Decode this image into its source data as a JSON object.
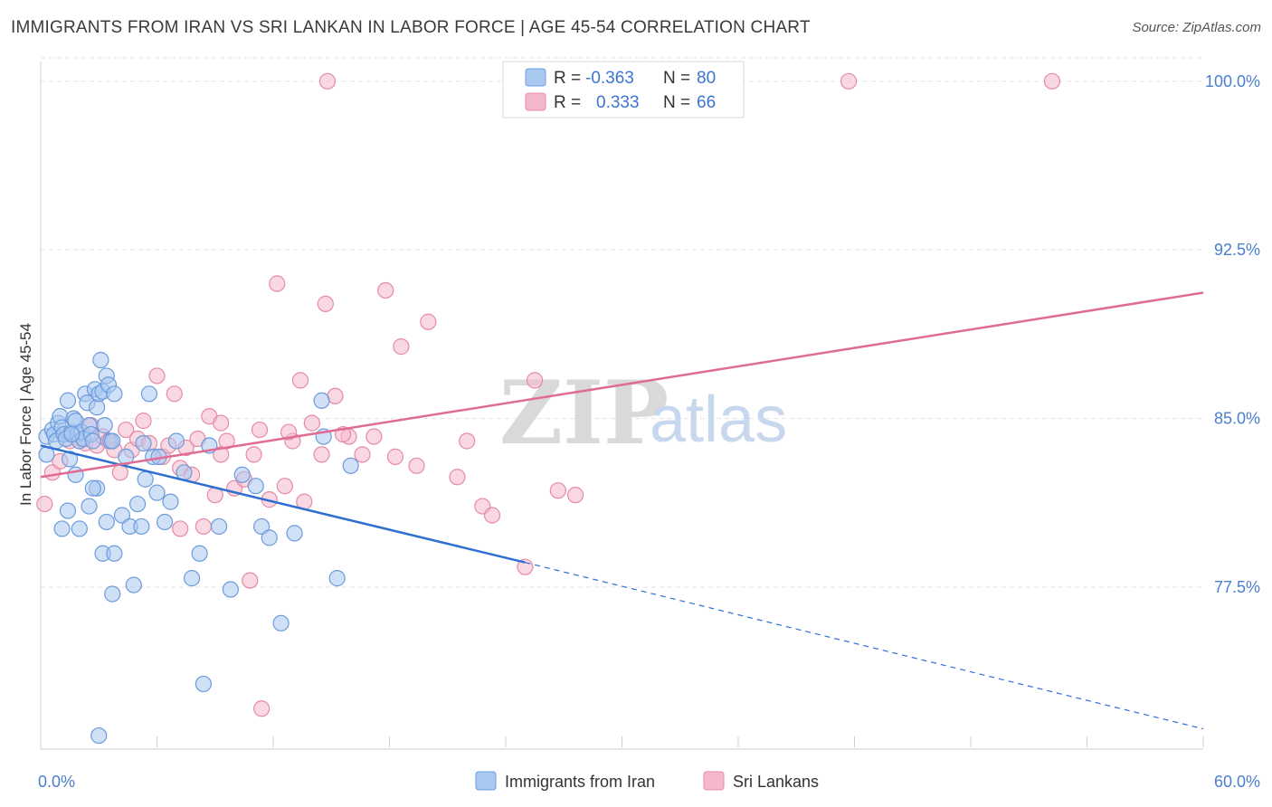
{
  "title": "IMMIGRANTS FROM IRAN VS SRI LANKAN IN LABOR FORCE | AGE 45-54 CORRELATION CHART",
  "source": "Source: ZipAtlas.com",
  "watermark": {
    "zip": "ZIP",
    "atlas": "atlas"
  },
  "colors": {
    "iran_fill": "#a9c8f0",
    "iran_stroke": "#6b9bdc",
    "iran_line": "#2f6fd0",
    "lanka_fill": "#f5b8cb",
    "lanka_stroke": "#e58aa8",
    "lanka_line": "#e06b93",
    "grid": "#e3e3e3",
    "tick_label": "#4a7fd0"
  },
  "legend": {
    "rows": [
      {
        "r_label": "R =",
        "r_value": "-0.363",
        "n_label": "N =",
        "n_value": "80"
      },
      {
        "r_label": "R =",
        "r_value": "0.333",
        "n_label": "N =",
        "n_value": "66"
      }
    ]
  },
  "bottom_legend": [
    "Immigrants from Iran",
    "Sri Lankans"
  ],
  "chart_data": {
    "type": "scatter",
    "ylabel": "In Labor Force | Age 45-54",
    "xlim": [
      0,
      60
    ],
    "ylim": [
      70.3,
      101.2
    ],
    "x_tick_labels": [
      {
        "value": 0,
        "label": "0.0%"
      },
      {
        "value": 60,
        "label": "60.0%"
      }
    ],
    "y_tick_labels": [
      {
        "value": 100.0,
        "label": "100.0%"
      },
      {
        "value": 92.5,
        "label": "92.5%"
      },
      {
        "value": 85.0,
        "label": "85.0%"
      },
      {
        "value": 77.5,
        "label": "77.5%"
      }
    ],
    "series": [
      {
        "name": "Immigrants from Iran",
        "trend": {
          "x0": 0,
          "y0": 83.8,
          "x1": 25,
          "y1": 78.6,
          "dashed_to_x": 60,
          "dashed_to_y": 71.2
        },
        "points": [
          [
            0.3,
            84.2
          ],
          [
            0.3,
            83.4
          ],
          [
            0.6,
            84.5
          ],
          [
            0.7,
            84.3
          ],
          [
            0.8,
            84.0
          ],
          [
            0.9,
            84.8
          ],
          [
            1.0,
            85.1
          ],
          [
            1.1,
            84.6
          ],
          [
            1.2,
            84.3
          ],
          [
            1.3,
            84.1
          ],
          [
            1.4,
            85.8
          ],
          [
            1.5,
            83.2
          ],
          [
            1.6,
            84.4
          ],
          [
            1.7,
            85.0
          ],
          [
            1.8,
            84.9
          ],
          [
            1.9,
            84.3
          ],
          [
            2.0,
            84.0
          ],
          [
            2.1,
            84.4
          ],
          [
            2.2,
            84.1
          ],
          [
            2.3,
            86.1
          ],
          [
            2.4,
            85.7
          ],
          [
            2.5,
            84.7
          ],
          [
            2.6,
            84.3
          ],
          [
            2.7,
            84.0
          ],
          [
            2.8,
            86.3
          ],
          [
            2.9,
            85.5
          ],
          [
            3.0,
            86.1
          ],
          [
            3.1,
            87.6
          ],
          [
            3.2,
            86.2
          ],
          [
            3.3,
            84.7
          ],
          [
            3.4,
            86.9
          ],
          [
            3.5,
            86.5
          ],
          [
            3.6,
            84.0
          ],
          [
            3.7,
            84.0
          ],
          [
            3.8,
            86.1
          ],
          [
            1.1,
            80.1
          ],
          [
            1.4,
            80.9
          ],
          [
            1.8,
            82.5
          ],
          [
            2.0,
            80.1
          ],
          [
            2.5,
            81.1
          ],
          [
            2.9,
            81.9
          ],
          [
            3.2,
            79.0
          ],
          [
            3.4,
            80.4
          ],
          [
            3.7,
            77.2
          ],
          [
            3.8,
            79.0
          ],
          [
            4.2,
            80.7
          ],
          [
            4.4,
            83.3
          ],
          [
            4.6,
            80.2
          ],
          [
            4.8,
            77.6
          ],
          [
            5.0,
            81.2
          ],
          [
            5.2,
            80.2
          ],
          [
            5.3,
            83.9
          ],
          [
            5.4,
            82.3
          ],
          [
            5.6,
            86.1
          ],
          [
            5.8,
            83.3
          ],
          [
            6.0,
            81.7
          ],
          [
            6.4,
            80.4
          ],
          [
            6.7,
            81.3
          ],
          [
            7.0,
            84.0
          ],
          [
            7.4,
            82.6
          ],
          [
            7.8,
            77.9
          ],
          [
            8.2,
            79.0
          ],
          [
            8.4,
            73.2
          ],
          [
            8.7,
            83.8
          ],
          [
            9.2,
            80.2
          ],
          [
            9.8,
            77.4
          ],
          [
            10.4,
            82.5
          ],
          [
            11.1,
            82.0
          ],
          [
            11.4,
            80.2
          ],
          [
            11.8,
            79.7
          ],
          [
            12.4,
            75.9
          ],
          [
            13.1,
            79.9
          ],
          [
            14.5,
            85.8
          ],
          [
            14.6,
            84.2
          ],
          [
            15.3,
            77.9
          ],
          [
            16.0,
            82.9
          ],
          [
            3.0,
            70.9
          ],
          [
            6.1,
            83.3
          ],
          [
            1.6,
            84.3
          ],
          [
            2.7,
            81.9
          ]
        ]
      },
      {
        "name": "Sri Lankans",
        "trend": {
          "x0": 0,
          "y0": 82.4,
          "x1": 60,
          "y1": 90.6
        },
        "points": [
          [
            0.2,
            81.2
          ],
          [
            0.6,
            82.6
          ],
          [
            1.0,
            83.1
          ],
          [
            1.5,
            84.0
          ],
          [
            2.0,
            84.0
          ],
          [
            2.3,
            83.9
          ],
          [
            2.6,
            84.7
          ],
          [
            2.9,
            83.8
          ],
          [
            3.2,
            84.2
          ],
          [
            3.5,
            84.0
          ],
          [
            3.8,
            83.6
          ],
          [
            4.1,
            82.6
          ],
          [
            4.4,
            84.5
          ],
          [
            4.7,
            83.6
          ],
          [
            5.0,
            84.1
          ],
          [
            5.3,
            84.9
          ],
          [
            5.6,
            83.9
          ],
          [
            6.0,
            86.9
          ],
          [
            6.3,
            83.3
          ],
          [
            6.6,
            83.8
          ],
          [
            6.9,
            86.1
          ],
          [
            7.2,
            82.8
          ],
          [
            7.5,
            83.7
          ],
          [
            7.8,
            82.5
          ],
          [
            8.1,
            84.1
          ],
          [
            8.4,
            80.2
          ],
          [
            8.7,
            85.1
          ],
          [
            9.0,
            81.6
          ],
          [
            9.3,
            83.4
          ],
          [
            9.6,
            84.0
          ],
          [
            10.0,
            81.9
          ],
          [
            10.5,
            82.3
          ],
          [
            11.0,
            83.4
          ],
          [
            11.3,
            84.5
          ],
          [
            11.8,
            81.4
          ],
          [
            12.2,
            91.0
          ],
          [
            12.6,
            82.0
          ],
          [
            13.0,
            84.0
          ],
          [
            13.4,
            86.7
          ],
          [
            14.0,
            84.8
          ],
          [
            14.5,
            83.4
          ],
          [
            15.2,
            86.0
          ],
          [
            15.9,
            84.2
          ],
          [
            16.6,
            83.4
          ],
          [
            17.2,
            84.2
          ],
          [
            17.8,
            90.7
          ],
          [
            18.6,
            88.2
          ],
          [
            19.4,
            82.9
          ],
          [
            20.0,
            89.3
          ],
          [
            21.5,
            82.4
          ],
          [
            22.8,
            81.1
          ],
          [
            23.3,
            80.7
          ],
          [
            25.5,
            86.7
          ],
          [
            26.7,
            81.8
          ],
          [
            27.6,
            81.6
          ],
          [
            25.0,
            78.4
          ],
          [
            11.4,
            72.1
          ],
          [
            10.8,
            77.8
          ],
          [
            7.2,
            80.1
          ],
          [
            14.7,
            90.1
          ],
          [
            15.6,
            84.3
          ],
          [
            22.0,
            84.0
          ],
          [
            18.3,
            83.3
          ],
          [
            13.6,
            81.3
          ],
          [
            12.8,
            84.4
          ],
          [
            9.3,
            84.8
          ]
        ],
        "points_at_top": [
          [
            14.8,
            100.0
          ],
          [
            26.0,
            100.0
          ],
          [
            41.7,
            100.0
          ],
          [
            52.2,
            100.0
          ]
        ]
      }
    ]
  }
}
